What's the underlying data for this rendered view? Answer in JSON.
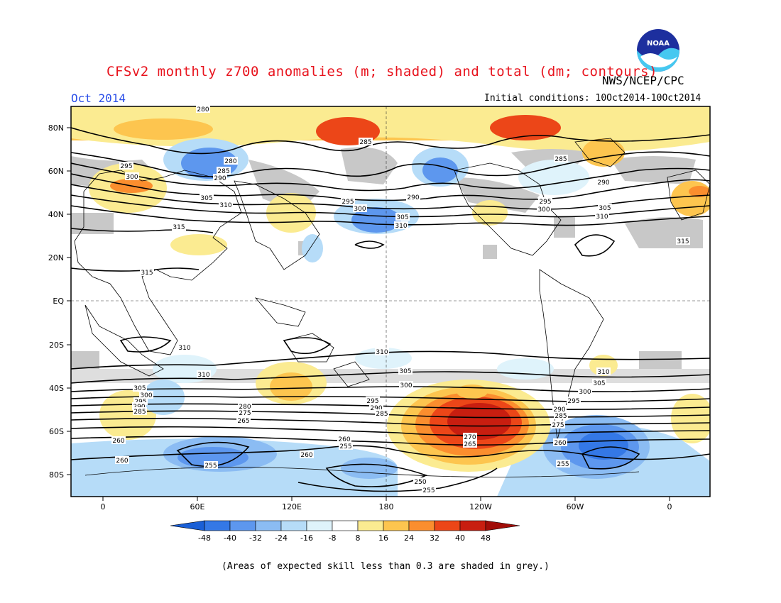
{
  "header": {
    "title": "CFSv2 monthly z700 anomalies (m; shaded) and total (dm; contours)",
    "agency": "NWS/NCEP/CPC",
    "period": "Oct 2014",
    "initial_conditions": "Initial conditions: 10Oct2014-10Oct2014",
    "logo_text": "NOAA"
  },
  "axes": {
    "lat_labels": [
      "80N",
      "60N",
      "40N",
      "20N",
      "EQ",
      "20S",
      "40S",
      "60S",
      "80S"
    ],
    "lon_labels": [
      "0",
      "60E",
      "120E",
      "180",
      "120W",
      "60W",
      "0"
    ]
  },
  "contour_labels": {
    "nh": [
      "280",
      "285",
      "290",
      "295",
      "300",
      "305",
      "310",
      "315"
    ],
    "sh": [
      "310",
      "305",
      "300",
      "295",
      "290",
      "285",
      "280",
      "275",
      "270",
      "265",
      "260",
      "255",
      "250"
    ]
  },
  "colorbar": {
    "ticks": [
      "-48",
      "-40",
      "-32",
      "-24",
      "-16",
      "-8",
      "8",
      "16",
      "24",
      "32",
      "40",
      "48"
    ],
    "colors": [
      "#1a5fd6",
      "#3478e6",
      "#5d97ee",
      "#8bbcf3",
      "#b6dcf8",
      "#dff3fb",
      "#ffffff",
      "#fbeb91",
      "#fdc54f",
      "#fb8e2e",
      "#ec4618",
      "#c81e10",
      "#a10d08"
    ]
  },
  "footnote": "(Areas of expected skill less than 0.3 are shaded in grey.)",
  "colors": {
    "title": "#e8141e",
    "period": "#2a4ee8",
    "grey_skill": "#c8c8c8"
  }
}
